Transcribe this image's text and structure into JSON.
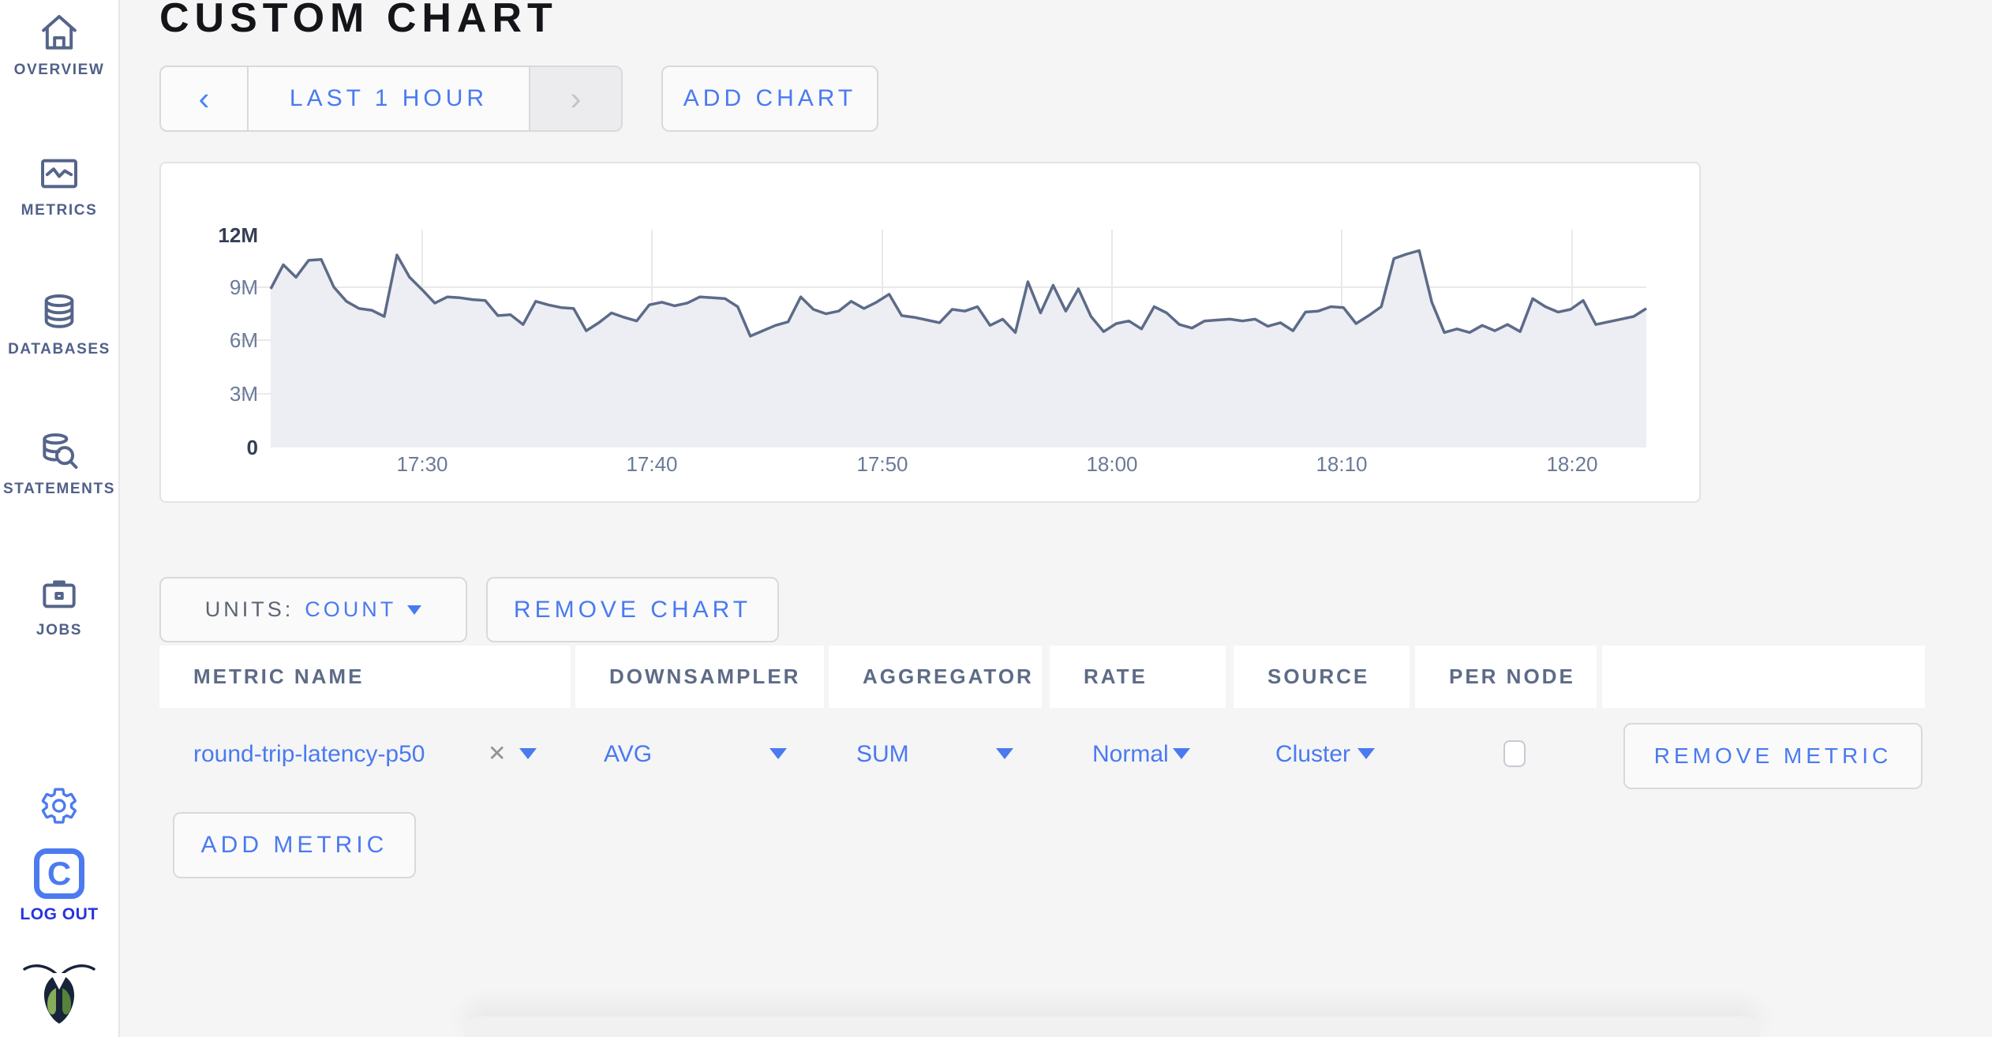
{
  "sidebar": {
    "items": [
      {
        "label": "OVERVIEW"
      },
      {
        "label": "METRICS"
      },
      {
        "label": "DATABASES"
      },
      {
        "label": "STATEMENTS"
      },
      {
        "label": "JOBS"
      }
    ],
    "logout": {
      "label": "LOG OUT",
      "logo_letter": "C"
    }
  },
  "header": {
    "title": "CUSTOM CHART"
  },
  "toolbar": {
    "prev": "‹",
    "time_range": "LAST 1 HOUR",
    "next": "›",
    "add_chart": "ADD CHART"
  },
  "chart_controls": {
    "units_label": "UNITS:",
    "units_value": "COUNT",
    "remove_chart": "REMOVE CHART",
    "add_metric": "ADD METRIC"
  },
  "metrics_table": {
    "columns": [
      "METRIC NAME",
      "DOWNSAMPLER",
      "AGGREGATOR",
      "RATE",
      "SOURCE",
      "PER NODE",
      ""
    ],
    "rows": [
      {
        "metric_name": "round-trip-latency-p50",
        "clear": "✕",
        "downsampler": "AVG",
        "aggregator": "SUM",
        "rate": "Normal",
        "source": "Cluster",
        "per_node_checked": false,
        "remove_label": "REMOVE METRIC"
      }
    ]
  },
  "chart_data": {
    "type": "area",
    "title": "",
    "unit": "count",
    "x_start": "17:23",
    "x_end": "18:23",
    "x_ticks": [
      "17:30",
      "17:40",
      "17:50",
      "18:00",
      "18:10",
      "18:20"
    ],
    "y_ticks": [
      "12M",
      "9M",
      "6M",
      "3M",
      "0"
    ],
    "ylim": [
      0,
      12000000
    ],
    "grid": true,
    "legend": "none",
    "colors": {
      "line": "#5d6b89",
      "fill": "#edeef4"
    },
    "values_millions": [
      8.9,
      10.25,
      9.55,
      10.5,
      10.55,
      9.0,
      8.2,
      7.8,
      7.7,
      7.35,
      10.8,
      9.55,
      8.85,
      8.1,
      8.45,
      8.4,
      8.3,
      8.25,
      7.4,
      7.45,
      6.9,
      8.2,
      8.0,
      7.85,
      7.8,
      6.55,
      7.0,
      7.55,
      7.3,
      7.1,
      8.0,
      8.15,
      7.95,
      8.1,
      8.45,
      8.4,
      8.35,
      7.9,
      6.25,
      6.55,
      6.85,
      7.05,
      8.45,
      7.75,
      7.5,
      7.65,
      8.2,
      7.8,
      8.15,
      8.6,
      7.4,
      7.3,
      7.15,
      7.0,
      7.75,
      7.65,
      7.9,
      6.85,
      7.2,
      6.45,
      9.3,
      7.55,
      9.1,
      7.65,
      8.9,
      7.35,
      6.5,
      6.95,
      7.1,
      6.65,
      7.9,
      7.55,
      6.9,
      6.7,
      7.1,
      7.15,
      7.2,
      7.1,
      7.2,
      6.8,
      7.0,
      6.55,
      7.6,
      7.65,
      7.9,
      7.85,
      6.95,
      7.4,
      7.9,
      10.6,
      10.85,
      11.05,
      8.15,
      6.45,
      6.65,
      6.45,
      6.85,
      6.55,
      6.9,
      6.5,
      8.35,
      7.9,
      7.6,
      7.75,
      8.25,
      6.9,
      7.05,
      7.2,
      7.35,
      7.8
    ]
  }
}
